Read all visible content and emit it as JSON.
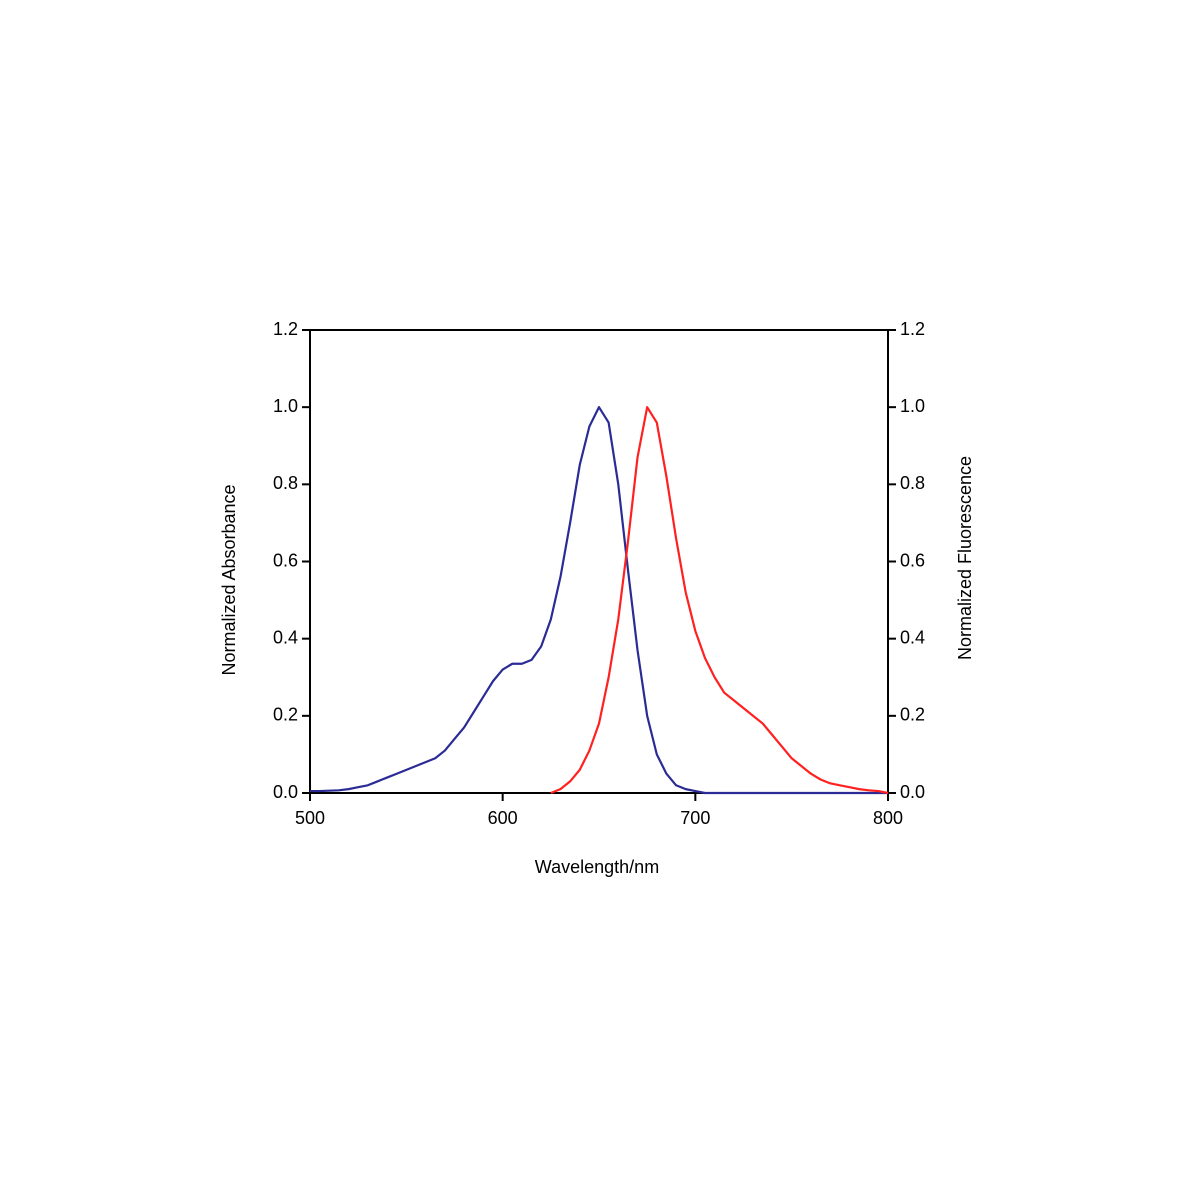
{
  "chart_data": {
    "type": "line",
    "x_label": "Wavelength/nm",
    "y_label": "Normalized Absorbance",
    "y2_label": "Normalized Fluorescence",
    "x": [
      500,
      505,
      510,
      515,
      520,
      525,
      530,
      535,
      540,
      545,
      550,
      555,
      560,
      565,
      570,
      575,
      580,
      585,
      590,
      595,
      600,
      605,
      610,
      615,
      620,
      625,
      630,
      635,
      640,
      645,
      650,
      655,
      660,
      665,
      670,
      675,
      680,
      685,
      690,
      695,
      700,
      705,
      710,
      715,
      720,
      725,
      730,
      735,
      740,
      745,
      750,
      755,
      760,
      765,
      770,
      775,
      780,
      785,
      790,
      795,
      800
    ],
    "series": [
      {
        "name": "Normalized Absorbance",
        "color": "#2b2b96",
        "axis": "y",
        "values": [
          0.005,
          0.005,
          0.006,
          0.007,
          0.01,
          0.015,
          0.02,
          0.03,
          0.04,
          0.05,
          0.06,
          0.07,
          0.08,
          0.09,
          0.11,
          0.14,
          0.17,
          0.21,
          0.25,
          0.29,
          0.32,
          0.335,
          0.335,
          0.345,
          0.38,
          0.45,
          0.56,
          0.7,
          0.85,
          0.95,
          1.0,
          0.96,
          0.8,
          0.58,
          0.37,
          0.2,
          0.1,
          0.05,
          0.02,
          0.01,
          0.005,
          0,
          0,
          0,
          0,
          0,
          0,
          0,
          0,
          0,
          0,
          0,
          0,
          0,
          0,
          0,
          0,
          0,
          0,
          0,
          0
        ]
      },
      {
        "name": "Normalized Fluorescence",
        "color": "#ff2020",
        "axis": "y2",
        "values": [
          null,
          null,
          null,
          null,
          null,
          null,
          null,
          null,
          null,
          null,
          null,
          null,
          null,
          null,
          null,
          null,
          null,
          null,
          null,
          null,
          null,
          null,
          null,
          null,
          null,
          0,
          0.01,
          0.03,
          0.06,
          0.11,
          0.18,
          0.3,
          0.45,
          0.65,
          0.87,
          1.0,
          0.96,
          0.82,
          0.66,
          0.52,
          0.42,
          0.35,
          0.3,
          0.26,
          0.24,
          0.22,
          0.2,
          0.18,
          0.15,
          0.12,
          0.09,
          0.07,
          0.05,
          0.035,
          0.025,
          0.02,
          0.015,
          0.01,
          0.007,
          0.005,
          0
        ]
      }
    ],
    "xlim": [
      500,
      800
    ],
    "xticks": [
      500,
      600,
      700,
      800
    ],
    "ylim": [
      0,
      1.2
    ],
    "yticks": [
      {
        "value": 0,
        "label": "0.0"
      },
      {
        "value": 0.2,
        "label": "0.2"
      },
      {
        "value": 0.4,
        "label": "0.4"
      },
      {
        "value": 0.6,
        "label": "0.6"
      },
      {
        "value": 0.8,
        "label": "0.8"
      },
      {
        "value": 1,
        "label": "1.0"
      },
      {
        "value": 1.2,
        "label": "1.2"
      }
    ],
    "y2lim": [
      0,
      1.2
    ],
    "y2ticks": [
      {
        "value": 0,
        "label": "0.0"
      },
      {
        "value": 0.2,
        "label": "0.2"
      },
      {
        "value": 0.4,
        "label": "0.4"
      },
      {
        "value": 0.6,
        "label": "0.6"
      },
      {
        "value": 0.8,
        "label": "0.8"
      },
      {
        "value": 1,
        "label": "1.0"
      },
      {
        "value": 1.2,
        "label": "1.2"
      }
    ]
  }
}
